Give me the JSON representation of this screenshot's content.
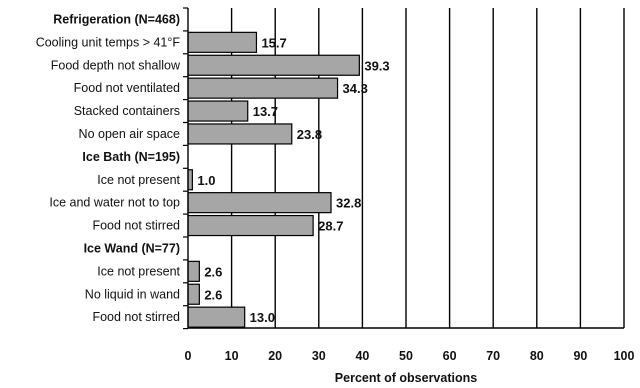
{
  "chart_data": {
    "type": "bar",
    "orientation": "horizontal",
    "xlabel": "Percent of observations",
    "xlim": [
      0,
      100
    ],
    "xticks": [
      "0",
      "10",
      "20",
      "30",
      "40",
      "50",
      "60",
      "70",
      "80",
      "90",
      "100"
    ],
    "grid": true,
    "bar_color": "#a6a6a6",
    "groups": [
      {
        "name": "Refrigeration (N=468)",
        "items": [
          {
            "label": "Cooling unit temps > 41°F",
            "value": 15.7,
            "value_label": "15.7"
          },
          {
            "label": "Food depth not shallow",
            "value": 39.3,
            "value_label": "39.3"
          },
          {
            "label": "Food not ventilated",
            "value": 34.3,
            "value_label": "34.3"
          },
          {
            "label": "Stacked containers",
            "value": 13.7,
            "value_label": "13.7"
          },
          {
            "label": "No open air space",
            "value": 23.8,
            "value_label": "23.8"
          }
        ]
      },
      {
        "name": "Ice Bath (N=195)",
        "items": [
          {
            "label": "Ice not present",
            "value": 1.0,
            "value_label": "1.0"
          },
          {
            "label": "Ice and water not to top",
            "value": 32.8,
            "value_label": "32.8"
          },
          {
            "label": "Food not stirred",
            "value": 28.7,
            "value_label": "28.7"
          }
        ]
      },
      {
        "name": "Ice Wand (N=77)",
        "items": [
          {
            "label": "Ice not present",
            "value": 2.6,
            "value_label": "2.6"
          },
          {
            "label": "No liquid in wand",
            "value": 2.6,
            "value_label": "2.6"
          },
          {
            "label": "Food not stirred",
            "value": 13.0,
            "value_label": "13.0"
          }
        ]
      }
    ]
  }
}
